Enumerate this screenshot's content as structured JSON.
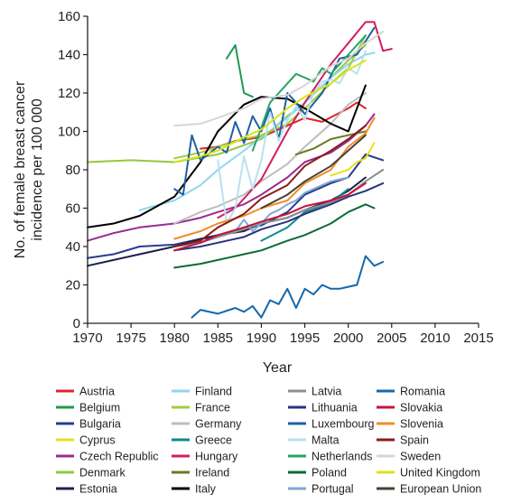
{
  "chart_data": {
    "type": "line",
    "title": "",
    "xlabel": "Year",
    "ylabel": "No. of female breast cancer incidence per 100 000",
    "xlim": [
      1970,
      2015
    ],
    "ylim": [
      0,
      160
    ],
    "xticks": [
      1970,
      1975,
      1980,
      1985,
      1990,
      1995,
      2000,
      2005,
      2010,
      2015
    ],
    "yticks": [
      0,
      20,
      40,
      60,
      80,
      100,
      120,
      140,
      160
    ],
    "grid": false,
    "legend_position": "bottom",
    "series": [
      {
        "name": "Austria",
        "color": "#e0242b",
        "x": [
          1983,
          1985,
          1987,
          1990,
          1993,
          1995,
          1997,
          2000,
          2001,
          2002
        ],
        "y": [
          91,
          92,
          95,
          97,
          103,
          107,
          105,
          112,
          115,
          112
        ]
      },
      {
        "name": "Belgium",
        "color": "#1d9a52",
        "x": [
          1986,
          1987,
          1988,
          1989
        ],
        "y": [
          138,
          145,
          120,
          118
        ]
      },
      {
        "name": "Bulgaria",
        "color": "#2b3a8f",
        "x": [
          1970,
          1973,
          1976,
          1980,
          1983,
          1985,
          1988,
          1990,
          1993,
          1995,
          1998,
          2000,
          2002,
          2004
        ],
        "y": [
          34,
          36,
          40,
          41,
          44,
          45,
          50,
          51,
          58,
          67,
          73,
          76,
          88,
          85
        ]
      },
      {
        "name": "Cyprus",
        "color": "#e9e11c",
        "x": [
          1998,
          2000,
          2001,
          2002,
          2003
        ],
        "y": [
          77,
          80,
          84,
          86,
          94
        ]
      },
      {
        "name": "Czech Republic",
        "color": "#9b2b8e",
        "x": [
          1970,
          1973,
          1976,
          1980,
          1983,
          1985,
          1988,
          1990,
          1993,
          1995,
          1998,
          2000,
          2002,
          2003
        ],
        "y": [
          43,
          47,
          50,
          52,
          55,
          58,
          62,
          67,
          76,
          84,
          89,
          95,
          103,
          109
        ]
      },
      {
        "name": "Denmark",
        "color": "#93c83e",
        "x": [
          1970,
          1975,
          1980,
          1985,
          1990,
          1993,
          1995,
          1998,
          2000,
          2002
        ],
        "y": [
          84,
          85,
          84,
          88,
          96,
          108,
          115,
          128,
          137,
          145
        ]
      },
      {
        "name": "Estonia",
        "color": "#1b1f4f",
        "x": [
          1970,
          1973,
          1976,
          1980,
          1983,
          1985,
          1988,
          1990,
          1993,
          1995,
          1998,
          2000,
          2002
        ],
        "y": [
          30,
          33,
          36,
          40,
          44,
          46,
          48,
          52,
          55,
          59,
          64,
          69,
          76
        ]
      },
      {
        "name": "Finland",
        "color": "#8fd6ef",
        "x": [
          1976,
          1980,
          1983,
          1985,
          1988,
          1990,
          1993,
          1995,
          1998,
          2000,
          2002,
          2003
        ],
        "y": [
          59,
          64,
          72,
          80,
          90,
          97,
          107,
          115,
          128,
          135,
          140,
          141
        ]
      },
      {
        "name": "France",
        "color": "#a2cd3a",
        "x": [
          1980,
          1983,
          1985,
          1988,
          1990,
          1993,
          1995,
          1998,
          2000,
          2002
        ],
        "y": [
          86,
          89,
          92,
          96,
          98,
          104,
          112,
          125,
          133,
          150
        ]
      },
      {
        "name": "Germany",
        "color": "#bdbdbd",
        "x": [
          1980,
          1983,
          1985,
          1988,
          1990,
          1993,
          1995,
          1998,
          2000,
          2002
        ],
        "y": [
          52,
          58,
          61,
          67,
          74,
          83,
          92,
          104,
          114,
          120
        ]
      },
      {
        "name": "Greece",
        "color": "#0d8a8f",
        "x": [
          1990,
          1993,
          1995,
          1998,
          2000
        ],
        "y": [
          43,
          50,
          58,
          63,
          70
        ]
      },
      {
        "name": "Hungary",
        "color": "#d11f5e",
        "x": [
          1985,
          1987,
          1990,
          1993,
          1995,
          1998,
          2000,
          2002,
          2003,
          2004,
          2005
        ],
        "y": [
          55,
          60,
          75,
          100,
          115,
          135,
          146,
          157,
          157,
          142,
          143
        ]
      },
      {
        "name": "Ireland",
        "color": "#6b7a23",
        "x": [
          1994,
          1996,
          1998,
          2000,
          2002
        ],
        "y": [
          88,
          91,
          96,
          98,
          100
        ]
      },
      {
        "name": "Italy",
        "color": "#000000",
        "x": [
          1970,
          1973,
          1976,
          1980,
          1983,
          1985,
          1988,
          1990,
          1993,
          1995,
          1998,
          2000,
          2002
        ],
        "y": [
          50,
          52,
          56,
          66,
          84,
          100,
          114,
          118,
          117,
          112,
          104,
          100,
          124
        ]
      },
      {
        "name": "Latvia",
        "color": "#8e8e8e",
        "x": [
          1980,
          1983,
          1985,
          1988,
          1990,
          1993,
          1995,
          1998,
          2000,
          2002,
          2004
        ],
        "y": [
          40,
          42,
          45,
          49,
          52,
          55,
          59,
          63,
          67,
          74,
          80
        ]
      },
      {
        "name": "Lithuania",
        "color": "#28347d",
        "x": [
          1980,
          1983,
          1985,
          1988,
          1990,
          1993,
          1995,
          1998,
          2000,
          2002,
          2004
        ],
        "y": [
          38,
          40,
          42,
          45,
          49,
          53,
          57,
          62,
          66,
          69,
          73
        ]
      },
      {
        "name": "Luxembourg",
        "color": "#1f5fa5",
        "x": [
          1980,
          1981,
          1982,
          1983,
          1985,
          1986,
          1987,
          1988,
          1989,
          1990,
          1991,
          1992,
          1993,
          1994,
          1995,
          1997,
          1999,
          2001,
          2003
        ],
        "y": [
          70,
          67,
          98,
          85,
          92,
          89,
          105,
          94,
          108,
          100,
          112,
          96,
          120,
          115,
          109,
          120,
          138,
          140,
          154
        ]
      },
      {
        "name": "Malta",
        "color": "#b7e2f0",
        "x": [
          1985,
          1986,
          1987,
          1988,
          1989,
          1990,
          1991,
          1992,
          1993,
          1994,
          1995,
          1996,
          1997,
          1998,
          1999,
          2000,
          2001,
          2002
        ],
        "y": [
          85,
          52,
          60,
          87,
          70,
          85,
          110,
          95,
          106,
          113,
          106,
          120,
          126,
          127,
          125,
          133,
          130,
          142
        ]
      },
      {
        "name": "Netherlands",
        "color": "#27a365",
        "x": [
          1989,
          1990,
          1991,
          1992,
          1993,
          1994,
          1995,
          1996,
          1997,
          1998,
          2000,
          2002
        ],
        "y": [
          90,
          102,
          115,
          120,
          125,
          130,
          128,
          126,
          133,
          130,
          140,
          150
        ]
      },
      {
        "name": "Poland",
        "color": "#0c6b38",
        "x": [
          1980,
          1983,
          1985,
          1988,
          1990,
          1993,
          1995,
          1998,
          2000,
          2002,
          2003
        ],
        "y": [
          29,
          31,
          33,
          36,
          38,
          43,
          46,
          52,
          58,
          62,
          60
        ]
      },
      {
        "name": "Portugal",
        "color": "#7ea9d8",
        "x": [
          1987,
          1988,
          1989,
          1990,
          1991,
          1992,
          1993,
          1994,
          1995,
          1996,
          1997,
          1998,
          1999,
          2000
        ],
        "y": [
          48,
          54,
          48,
          52,
          57,
          59,
          62,
          64,
          68,
          70,
          72,
          74,
          75,
          76
        ]
      },
      {
        "name": "Romania",
        "color": "#1468ad",
        "x": [
          1982,
          1983,
          1985,
          1987,
          1988,
          1989,
          1990,
          1991,
          1992,
          1993,
          1994,
          1995,
          1996,
          1997,
          1998,
          1999,
          2000,
          2001,
          2002,
          2003,
          2004
        ],
        "y": [
          3,
          7,
          5,
          8,
          6,
          9,
          3,
          12,
          10,
          18,
          8,
          18,
          15,
          20,
          18,
          18,
          19,
          20,
          35,
          30,
          32
        ]
      },
      {
        "name": "Slovakia",
        "color": "#c3143c",
        "x": [
          1980,
          1983,
          1985,
          1988,
          1990,
          1993,
          1995,
          1998,
          2000,
          2002
        ],
        "y": [
          38,
          42,
          46,
          50,
          53,
          57,
          61,
          64,
          67,
          73
        ]
      },
      {
        "name": "Slovenia",
        "color": "#f28c28",
        "x": [
          1980,
          1983,
          1985,
          1988,
          1990,
          1993,
          1995,
          1998,
          2000,
          2002,
          2003
        ],
        "y": [
          44,
          48,
          52,
          56,
          60,
          64,
          73,
          80,
          92,
          99,
          107
        ]
      },
      {
        "name": "Spain",
        "color": "#8a1b1b",
        "x": [
          1980,
          1983,
          1985,
          1988,
          1990,
          1993,
          1995,
          1998,
          2000,
          2002
        ],
        "y": [
          40,
          43,
          50,
          57,
          65,
          72,
          82,
          90,
          96,
          103
        ]
      },
      {
        "name": "Sweden",
        "color": "#d6d6d6",
        "x": [
          1980,
          1983,
          1985,
          1988,
          1990,
          1993,
          1995,
          1998,
          2000,
          2002,
          2004
        ],
        "y": [
          103,
          104,
          107,
          112,
          117,
          119,
          124,
          134,
          138,
          146,
          152
        ]
      },
      {
        "name": "United Kingdom",
        "color": "#d9e31a",
        "x": [
          1980,
          1983,
          1985,
          1988,
          1990,
          1993,
          1995,
          1998,
          2000,
          2002
        ],
        "y": [
          84,
          87,
          90,
          97,
          101,
          112,
          118,
          125,
          132,
          137
        ]
      },
      {
        "name": "European Union",
        "color": "#4a3f33",
        "x": [
          1990,
          1993,
          1995,
          1998,
          2000,
          2002
        ],
        "y": [
          60,
          67,
          74,
          82,
          90,
          98
        ]
      }
    ]
  }
}
